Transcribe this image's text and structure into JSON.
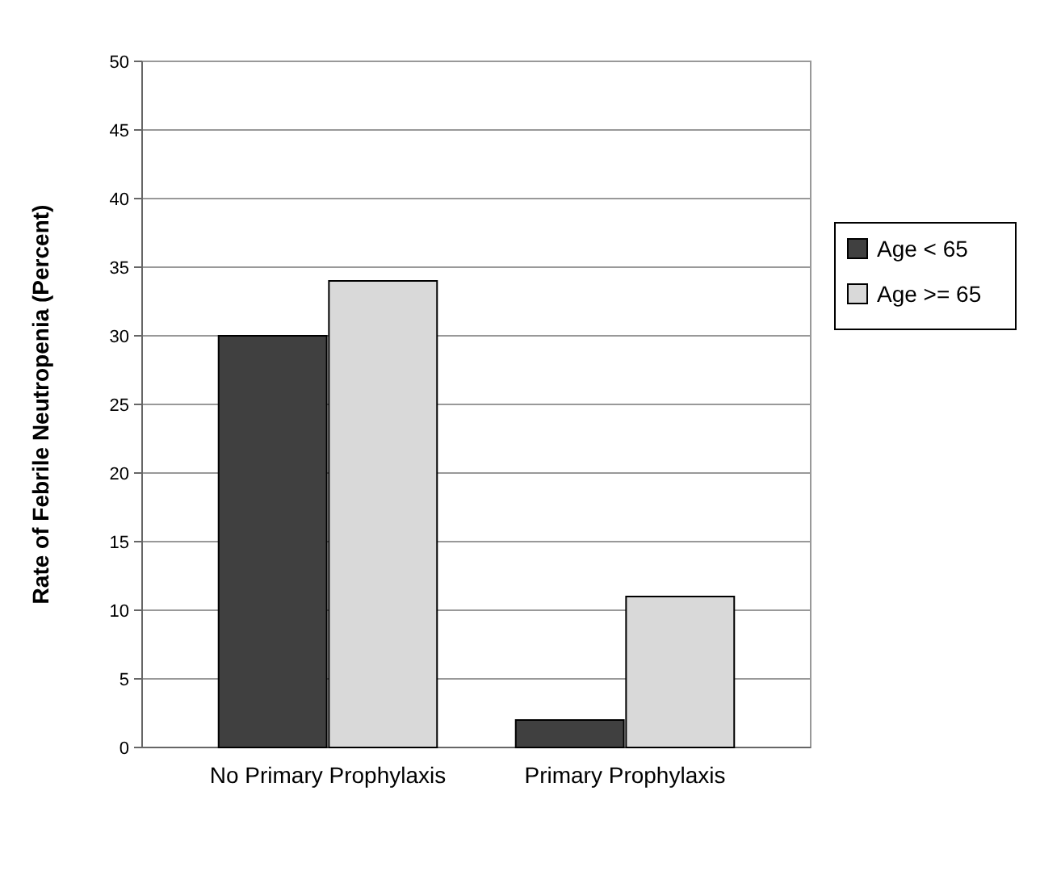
{
  "chart_data": {
    "type": "bar",
    "ylabel": "Rate of Febrile Neutropenia (Percent)",
    "categories": [
      "No Primary Prophylaxis",
      "Primary Prophylaxis"
    ],
    "series": [
      {
        "name": "Age < 65",
        "color": "#404040",
        "values": [
          30,
          2
        ]
      },
      {
        "name": "Age >= 65",
        "color": "#d9d9d9",
        "values": [
          34,
          11
        ]
      }
    ],
    "ylim": [
      0,
      50
    ],
    "yticks": [
      0,
      5,
      10,
      15,
      20,
      25,
      30,
      35,
      40,
      45,
      50
    ],
    "grid": "y",
    "legend": "right"
  }
}
